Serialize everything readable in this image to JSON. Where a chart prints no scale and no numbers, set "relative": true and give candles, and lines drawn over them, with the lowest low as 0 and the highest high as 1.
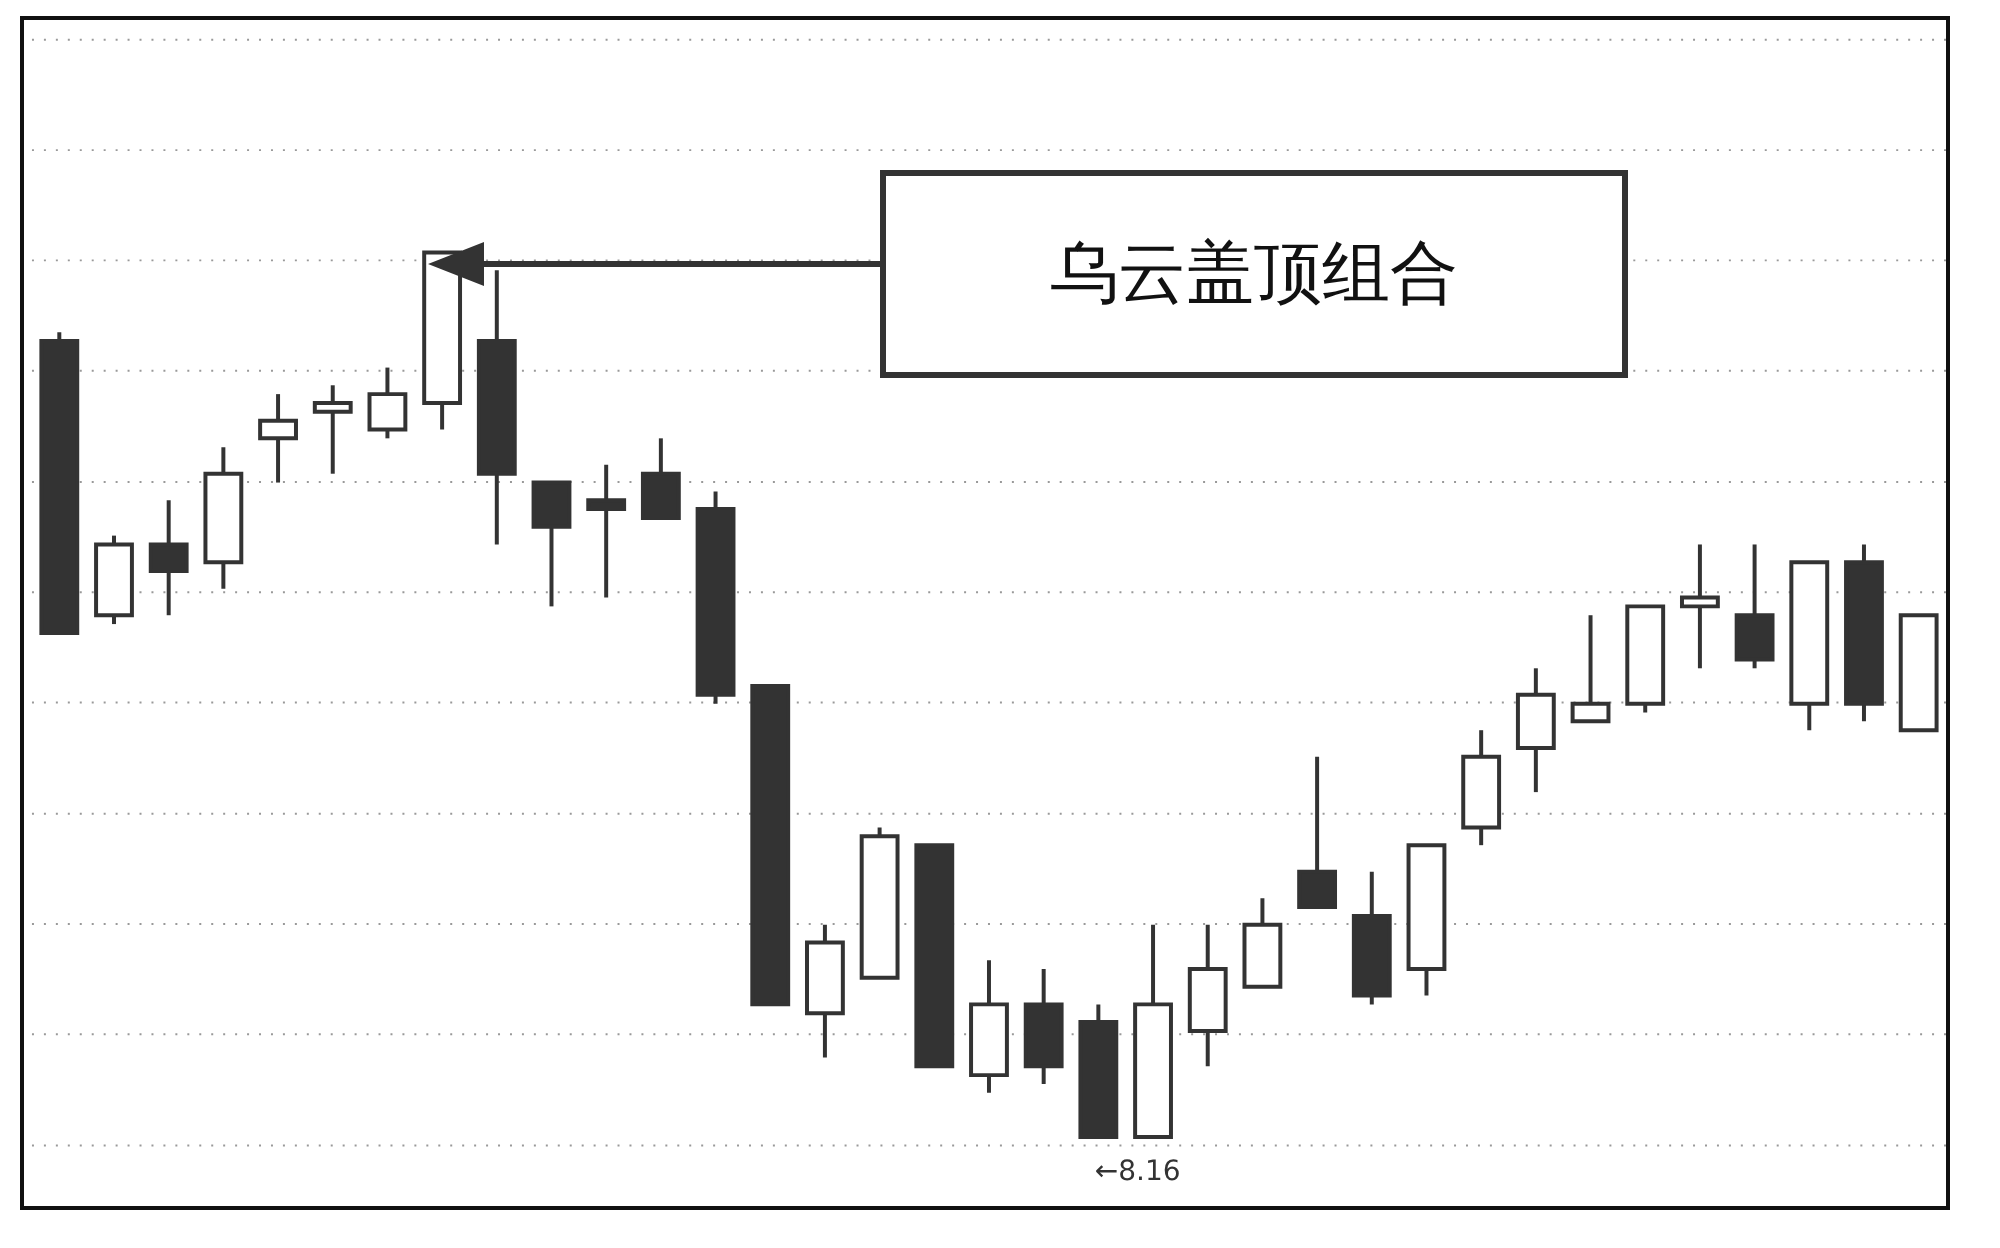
{
  "chart_data": {
    "type": "candlestick",
    "relative": true,
    "grid": "y",
    "color": "#333333",
    "categories": [
      null,
      null,
      null,
      null,
      null,
      null,
      null,
      null,
      null,
      null,
      null,
      null,
      null,
      null,
      null,
      null,
      null,
      null,
      null,
      null,
      null,
      null,
      null,
      null,
      null,
      null,
      null,
      null,
      null,
      null,
      null,
      null,
      null,
      null,
      null
    ],
    "ohlc": [
      [
        0.9,
        0.91,
        0.57,
        0.57
      ],
      [
        0.59,
        0.68,
        0.58,
        0.67
      ],
      [
        0.67,
        0.72,
        0.59,
        0.64
      ],
      [
        0.65,
        0.78,
        0.62,
        0.75
      ],
      [
        0.79,
        0.84,
        0.74,
        0.81
      ],
      [
        0.82,
        0.85,
        0.75,
        0.83
      ],
      [
        0.8,
        0.87,
        0.79,
        0.84
      ],
      [
        0.83,
        1,
        0.8,
        1
      ],
      [
        0.9,
        0.98,
        0.67,
        0.75
      ],
      [
        0.74,
        0.74,
        0.6,
        0.69
      ],
      [
        0.72,
        0.76,
        0.61,
        0.71
      ],
      [
        0.75,
        0.79,
        0.7,
        0.7
      ],
      [
        0.71,
        0.73,
        0.49,
        0.5
      ],
      [
        0.51,
        0.51,
        0.15,
        0.15
      ],
      [
        0.14,
        0.24,
        0.09,
        0.22
      ],
      [
        0.18,
        0.35,
        0.18,
        0.34
      ],
      [
        0.33,
        0.33,
        0.08,
        0.08
      ],
      [
        0.07,
        0.2,
        0.05,
        0.15
      ],
      [
        0.15,
        0.19,
        0.06,
        0.08
      ],
      [
        0.13,
        0.15,
        0,
        0
      ],
      [
        0,
        0.24,
        0,
        0.15
      ],
      [
        0.12,
        0.24,
        0.08,
        0.19
      ],
      [
        0.17,
        0.27,
        0.17,
        0.24
      ],
      [
        0.3,
        0.43,
        0.26,
        0.26
      ],
      [
        0.25,
        0.3,
        0.15,
        0.16
      ],
      [
        0.19,
        0.33,
        0.16,
        0.33
      ],
      [
        0.35,
        0.46,
        0.33,
        0.43
      ],
      [
        0.44,
        0.53,
        0.39,
        0.5
      ],
      [
        0.47,
        0.59,
        0.47,
        0.49
      ],
      [
        0.49,
        0.6,
        0.48,
        0.6
      ],
      [
        0.6,
        0.67,
        0.53,
        0.61
      ],
      [
        0.59,
        0.67,
        0.53,
        0.54
      ],
      [
        0.49,
        0.65,
        0.46,
        0.65
      ],
      [
        0.65,
        0.67,
        0.47,
        0.49
      ],
      [
        0.46,
        0.59,
        0.46,
        0.59
      ]
    ],
    "colors": [
      "#333333",
      "#ffffff",
      "#333333",
      "#ffffff",
      "#ffffff",
      "#ffffff",
      "#ffffff",
      "#ffffff",
      "#333333",
      "#333333",
      "#333333",
      "#333333",
      "#333333",
      "#333333",
      "#ffffff",
      "#ffffff",
      "#333333",
      "#ffffff",
      "#333333",
      "#333333",
      "#ffffff",
      "#ffffff",
      "#ffffff",
      "#333333",
      "#333333",
      "#ffffff",
      "#ffffff",
      "#ffffff",
      "#ffffff",
      "#ffffff",
      "#ffffff",
      "#333333",
      "#ffffff",
      "#333333",
      "#ffffff"
    ],
    "annotations": [
      "乌云盖顶组合",
      "←8.16"
    ]
  }
}
